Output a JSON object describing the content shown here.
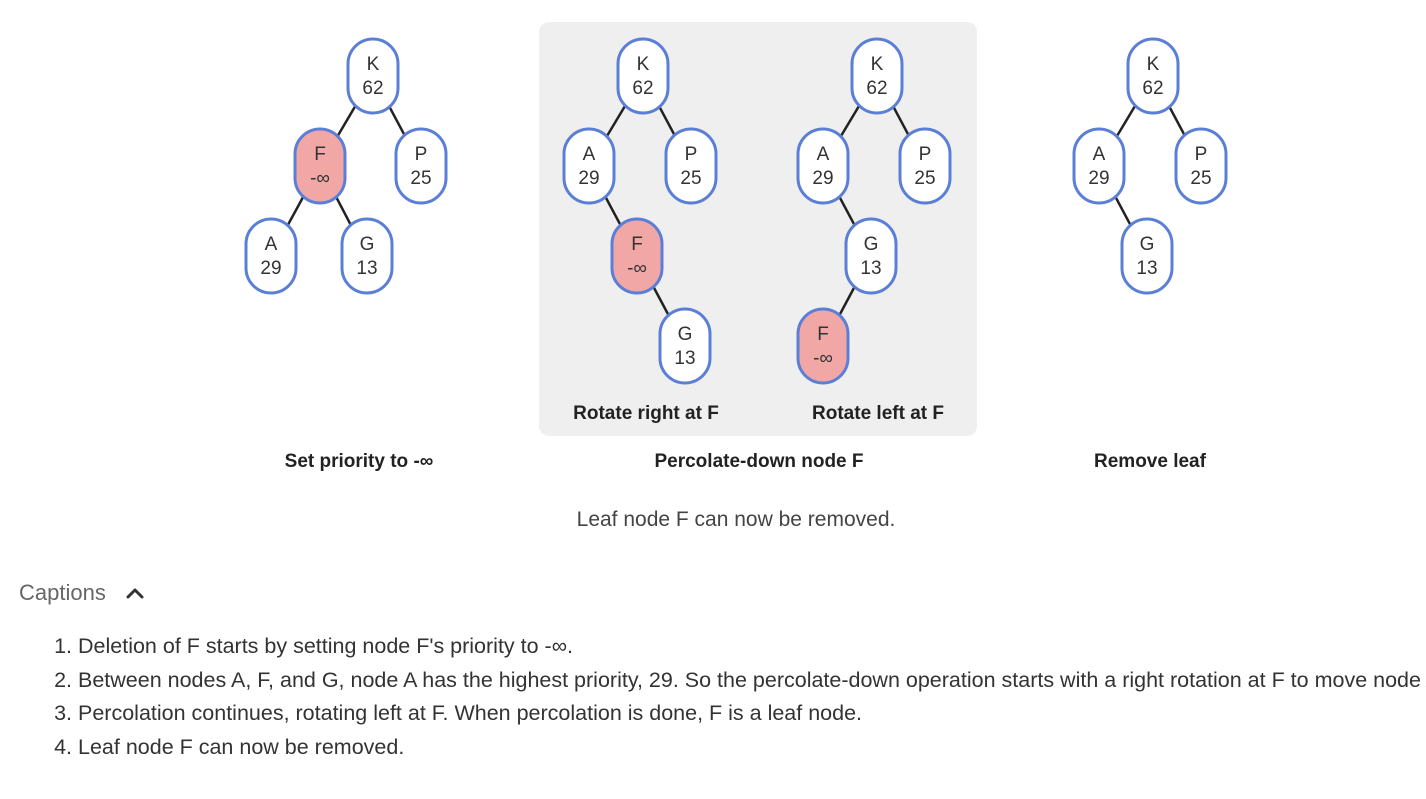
{
  "panels": [
    {
      "label": "Set priority to -∞",
      "trees": [
        {
          "nodes": [
            {
              "id": "K",
              "key": "K",
              "priority": "62"
            },
            {
              "id": "F",
              "key": "F",
              "priority": "-∞",
              "highlight": true
            },
            {
              "id": "P",
              "key": "P",
              "priority": "25"
            },
            {
              "id": "A",
              "key": "A",
              "priority": "29"
            },
            {
              "id": "G",
              "key": "G",
              "priority": "13"
            }
          ],
          "edges": [
            [
              "K",
              "F"
            ],
            [
              "K",
              "P"
            ],
            [
              "F",
              "A"
            ],
            [
              "F",
              "G"
            ]
          ]
        }
      ]
    },
    {
      "label": "Percolate-down node F",
      "shaded": true,
      "trees": [
        {
          "sublabel": "Rotate right at F",
          "nodes": [
            {
              "id": "K",
              "key": "K",
              "priority": "62"
            },
            {
              "id": "A",
              "key": "A",
              "priority": "29"
            },
            {
              "id": "P",
              "key": "P",
              "priority": "25"
            },
            {
              "id": "F",
              "key": "F",
              "priority": "-∞",
              "highlight": true
            },
            {
              "id": "G",
              "key": "G",
              "priority": "13"
            }
          ],
          "edges": [
            [
              "K",
              "A"
            ],
            [
              "K",
              "P"
            ],
            [
              "A",
              "F"
            ],
            [
              "F",
              "G"
            ]
          ]
        },
        {
          "sublabel": "Rotate left at F",
          "nodes": [
            {
              "id": "K",
              "key": "K",
              "priority": "62"
            },
            {
              "id": "A",
              "key": "A",
              "priority": "29"
            },
            {
              "id": "P",
              "key": "P",
              "priority": "25"
            },
            {
              "id": "G",
              "key": "G",
              "priority": "13"
            },
            {
              "id": "F",
              "key": "F",
              "priority": "-∞",
              "highlight": true
            }
          ],
          "edges": [
            [
              "K",
              "A"
            ],
            [
              "K",
              "P"
            ],
            [
              "A",
              "G"
            ],
            [
              "G",
              "F"
            ]
          ]
        }
      ]
    },
    {
      "label": "Remove leaf",
      "trees": [
        {
          "nodes": [
            {
              "id": "K",
              "key": "K",
              "priority": "62"
            },
            {
              "id": "A",
              "key": "A",
              "priority": "29"
            },
            {
              "id": "P",
              "key": "P",
              "priority": "25"
            },
            {
              "id": "G",
              "key": "G",
              "priority": "13"
            }
          ],
          "edges": [
            [
              "K",
              "A"
            ],
            [
              "K",
              "P"
            ],
            [
              "A",
              "G"
            ]
          ]
        }
      ]
    }
  ],
  "step_caption": "Leaf node F can now be removed.",
  "captions": {
    "title": "Captions",
    "items": [
      "Deletion of F starts by setting node F's priority to -∞.",
      "Between nodes A, F, and G, node A has the highest priority, 29. So the percolate-down operation starts with a right rotation at F to move node A up.",
      "Percolation continues, rotating left at F. When percolation is done, F is a leaf node.",
      "Leaf node F can now be removed."
    ]
  }
}
